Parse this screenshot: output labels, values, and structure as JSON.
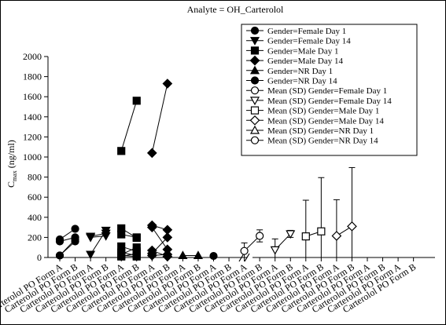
{
  "chart_data": {
    "type": "scatter",
    "title": "Analyte = OH_Carterolol",
    "xlabel": "",
    "ylabel": {
      "main": "C",
      "subscript": "max",
      "unit": " (ng/ml)"
    },
    "ylim": [
      0,
      2000
    ],
    "yticks": [
      0,
      200,
      400,
      600,
      800,
      1000,
      1200,
      1400,
      1600,
      1800,
      2000
    ],
    "grid": false,
    "legend_position": "top-right",
    "categories": [
      "Carterolol PO Form A",
      "Carterolol PO Form B",
      "Carterolol PO Form A",
      "Carterolol PO Form B",
      "Carterolol PO Form A",
      "Carterolol PO Form B",
      "Carterolol PO Form A",
      "Carterolol PO Form B",
      "Carterolol PO Form A",
      "Carterolol PO Form B",
      "Carterolol PO Form A",
      "Carterolol PO Form B",
      "Carterolol PO Form A",
      "Carterolol PO Form B",
      "Carterolol PO Form A",
      "Carterolol PO Form B",
      "Carterolol PO Form A",
      "Carterolol PO Form B",
      "Carterolol PO Form A",
      "Carterolol PO Form B",
      "Carterolol PO Form A",
      "Carterolol PO Form B",
      "Carterolol PO Form A",
      "Carterolol PO Form B"
    ],
    "axis_break_after_category": 11,
    "legend": [
      {
        "label": "Gender=Female  Day 1",
        "marker": "circle",
        "filled": true
      },
      {
        "label": "Gender=Female  Day 14",
        "marker": "triangle-down",
        "filled": true
      },
      {
        "label": "Gender=Male  Day 1",
        "marker": "square",
        "filled": true
      },
      {
        "label": "Gender=Male  Day 14",
        "marker": "diamond",
        "filled": true
      },
      {
        "label": "Gender=NR  Day 1",
        "marker": "triangle-up",
        "filled": true
      },
      {
        "label": "Gender=NR  Day 14",
        "marker": "circle",
        "filled": true
      },
      {
        "label": "Mean (SD) Gender=Female  Day 1",
        "marker": "circle",
        "filled": false
      },
      {
        "label": "Mean (SD) Gender=Female  Day 14",
        "marker": "triangle-down",
        "filled": false
      },
      {
        "label": "Mean (SD) Gender=Male  Day 1",
        "marker": "square",
        "filled": false
      },
      {
        "label": "Mean (SD) Gender=Male  Day 14",
        "marker": "diamond",
        "filled": false
      },
      {
        "label": "Mean (SD) Gender=NR  Day 1",
        "marker": "triangle-up",
        "filled": false
      },
      {
        "label": "Mean (SD) Gender=NR  Day 14",
        "marker": "circle",
        "filled": false
      }
    ],
    "individual_series": [
      {
        "group": "Gender=Female  Day 1",
        "marker": "circle",
        "subjects": [
          [
            20,
            160
          ],
          [
            160,
            200
          ],
          [
            20,
            180
          ],
          [
            180,
            285
          ]
        ]
      },
      {
        "group": "Gender=Female  Day 14",
        "marker": "triangle-down",
        "subjects": [
          [
            200,
            215
          ],
          [
            30,
            270
          ],
          [
            210,
            240
          ]
        ]
      },
      {
        "group": "Gender=Male  Day 1",
        "marker": "square",
        "subjects": [
          [
            1060,
            1560
          ],
          [
            290,
            195
          ],
          [
            230,
            200
          ],
          [
            110,
            60
          ],
          [
            50,
            20
          ],
          [
            20,
            10
          ],
          [
            10,
            40
          ],
          [
            30,
            100
          ]
        ]
      },
      {
        "group": "Gender=Male  Day 14",
        "marker": "diamond",
        "subjects": [
          [
            1040,
            1730
          ],
          [
            320,
            275
          ],
          [
            300,
            80
          ],
          [
            40,
            200
          ],
          [
            20,
            30
          ],
          [
            70,
            10
          ]
        ]
      },
      {
        "group": "Gender=NR  Day 1",
        "marker": "triangle-up",
        "subjects": [
          [
            20,
            20
          ]
        ]
      },
      {
        "group": "Gender=NR  Day 14",
        "marker": "circle",
        "subjects": [
          [
            15
          ]
        ]
      }
    ],
    "mean_series": [
      {
        "group": "Mean (SD) Gender=Female  Day 1",
        "marker": "circle",
        "means": [
          65,
          215
        ],
        "sd": [
          80,
          60
        ]
      },
      {
        "group": "Mean (SD) Gender=Female  Day 14",
        "marker": "triangle-down",
        "means": [
          75,
          235
        ],
        "sd": [
          110,
          35
        ]
      },
      {
        "group": "Mean (SD) Gender=Male  Day 1",
        "marker": "square",
        "means": [
          210,
          260
        ],
        "sd": [
          360,
          535
        ]
      },
      {
        "group": "Mean (SD) Gender=Male  Day 14",
        "marker": "diamond",
        "means": [
          215,
          310
        ],
        "sd": [
          360,
          585
        ]
      }
    ]
  }
}
